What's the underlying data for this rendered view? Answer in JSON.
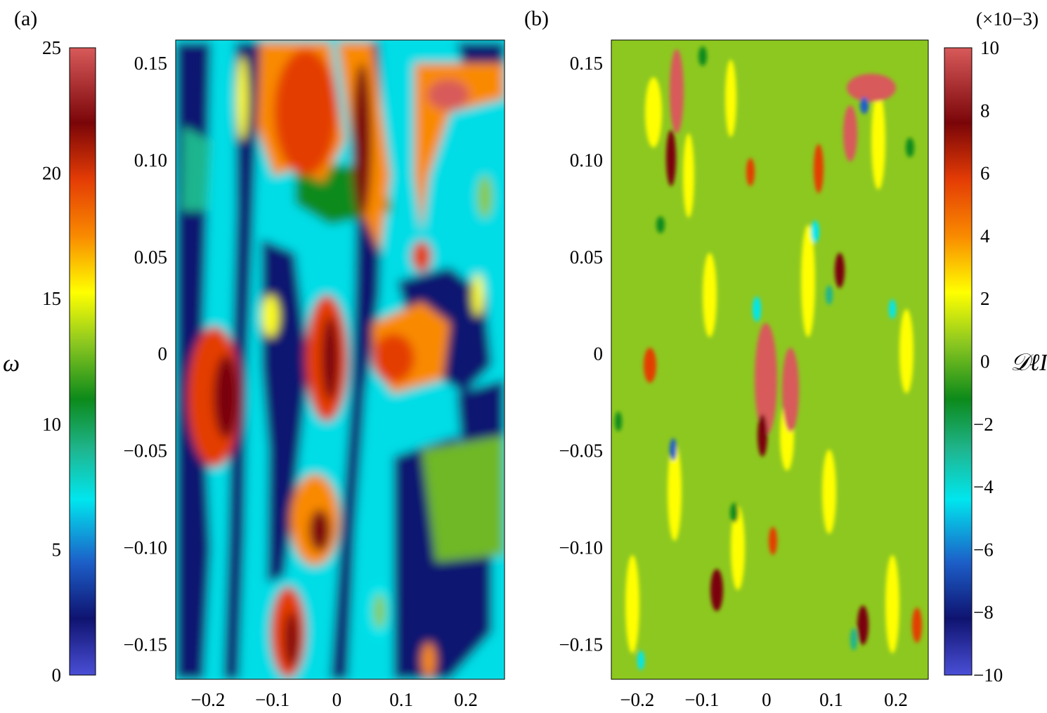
{
  "chart_data": [
    {
      "type": "heatmap",
      "panel_label": "(a)",
      "x_ticks": [
        "−0.2",
        "−0.1",
        "0",
        "0.1",
        "0.2"
      ],
      "x_tick_values": [
        -0.2,
        -0.1,
        0,
        0.1,
        0.2
      ],
      "xlim": [
        -0.25,
        0.26
      ],
      "y_ticks": [
        "0.15",
        "0.10",
        "0.05",
        "0",
        "−0.05",
        "−0.10",
        "−0.15"
      ],
      "y_tick_values": [
        0.15,
        0.1,
        0.05,
        0,
        -0.05,
        -0.1,
        -0.15
      ],
      "ylim": [
        -0.168,
        0.162
      ],
      "colorbar": {
        "label": "ω",
        "position": "left",
        "range": [
          0,
          25
        ],
        "ticks": [
          "25",
          "20",
          "15",
          "10",
          "5",
          "0"
        ],
        "tick_values": [
          25,
          20,
          15,
          10,
          5,
          0
        ],
        "colormap": "jet"
      }
    },
    {
      "type": "heatmap",
      "panel_label": "(b)",
      "x_ticks": [
        "−0.2",
        "−0.1",
        "0",
        "0.1",
        "0.2"
      ],
      "x_tick_values": [
        -0.2,
        -0.1,
        0,
        0.1,
        0.2
      ],
      "xlim": [
        -0.24,
        0.25
      ],
      "y_ticks": [
        "0.15",
        "0.10",
        "0.05",
        "0",
        "−0.05",
        "−0.10",
        "−0.15"
      ],
      "y_tick_values": [
        0.15,
        0.1,
        0.05,
        0,
        -0.05,
        -0.1,
        -0.15
      ],
      "ylim": [
        -0.168,
        0.162
      ],
      "colorbar": {
        "label": "𝒟ℓI",
        "position": "right",
        "scale_note": "(×10−3)",
        "range": [
          -10,
          10
        ],
        "ticks": [
          "10",
          "8",
          "6",
          "4",
          "2",
          "0",
          "−2",
          "−4",
          "−6",
          "−8",
          "−10"
        ],
        "tick_values": [
          10,
          8,
          6,
          4,
          2,
          0,
          -2,
          -4,
          -6,
          -8,
          -10
        ],
        "colormap": "jet"
      }
    }
  ],
  "colormap_stops": [
    "#4a4fd6",
    "#0f1370",
    "#1c5fc8",
    "#00e6ee",
    "#1fb58e",
    "#0c8a1a",
    "#8dc820",
    "#ffff00",
    "#f98a00",
    "#e43c05",
    "#7a0508",
    "#d85a5a"
  ]
}
